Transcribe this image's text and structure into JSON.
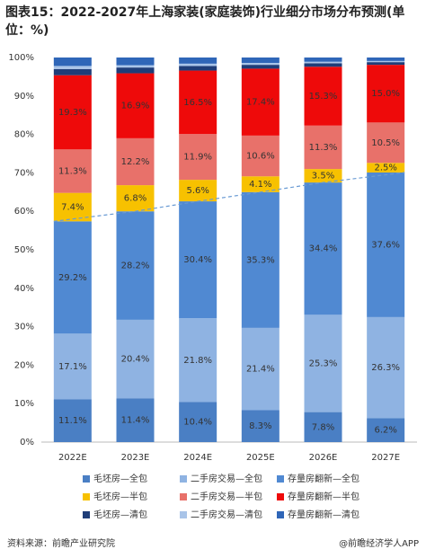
{
  "chart_data": {
    "type": "stacked_bar",
    "title": "图表15：2022-2027年上海家装(家庭装饰)行业细分市场分布预测(单位：%)",
    "categories": [
      "2022E",
      "2023E",
      "2024E",
      "2025E",
      "2026E",
      "2027E"
    ],
    "ylim": [
      0,
      100
    ],
    "yticks": [
      {
        "value": 0,
        "label": "0%"
      },
      {
        "value": 10,
        "label": "10%"
      },
      {
        "value": 20,
        "label": "20%"
      },
      {
        "value": 30,
        "label": "30%"
      },
      {
        "value": 40,
        "label": "40%"
      },
      {
        "value": 50,
        "label": "50%"
      },
      {
        "value": 60,
        "label": "60%"
      },
      {
        "value": 70,
        "label": "70%"
      },
      {
        "value": 80,
        "label": "80%"
      },
      {
        "value": 90,
        "label": "90%"
      },
      {
        "value": 100,
        "label": "100%"
      }
    ],
    "series": [
      {
        "name": "毛坯房—全包",
        "color": "#4a7fc4",
        "values": [
          11.1,
          11.4,
          10.4,
          8.3,
          7.8,
          6.2
        ],
        "value_labels": [
          "11.1%",
          "11.4%",
          "10.4%",
          "8.3%",
          "7.8%",
          "6.2%"
        ]
      },
      {
        "name": "二手房交易—全包",
        "color": "#8fb3e2",
        "values": [
          17.1,
          20.4,
          21.8,
          21.4,
          25.3,
          26.3
        ],
        "value_labels": [
          "17.1%",
          "20.4%",
          "21.8%",
          "21.4%",
          "25.3%",
          "26.3%"
        ]
      },
      {
        "name": "存量房翻新—全包",
        "color": "#5089d2",
        "values": [
          29.2,
          28.2,
          30.4,
          35.3,
          34.4,
          37.6
        ],
        "value_labels": [
          "29.2%",
          "28.2%",
          "30.4%",
          "35.3%",
          "34.4%",
          "37.6%"
        ]
      },
      {
        "name": "毛坯房—半包",
        "color": "#f7c100",
        "values": [
          7.4,
          6.8,
          5.6,
          4.1,
          3.5,
          2.5
        ],
        "value_labels": [
          "7.4%",
          "6.8%",
          "5.6%",
          "4.1%",
          "3.5%",
          "2.5%"
        ]
      },
      {
        "name": "二手房交易—半包",
        "color": "#e8716a",
        "values": [
          11.3,
          12.2,
          11.9,
          10.6,
          11.3,
          10.5
        ],
        "value_labels": [
          "11.3%",
          "12.2%",
          "11.9%",
          "10.6%",
          "11.3%",
          "10.5%"
        ]
      },
      {
        "name": "存量房翻新—半包",
        "color": "#ee0a0a",
        "values": [
          19.3,
          16.9,
          16.5,
          17.4,
          15.3,
          15.0
        ],
        "value_labels": [
          "19.3%",
          "16.9%",
          "16.5%",
          "17.4%",
          "15.3%",
          "15.0%"
        ]
      },
      {
        "name": "毛坯房—清包",
        "color": "#1f3d78",
        "values": [
          1.6,
          1.5,
          1.2,
          1.0,
          0.9,
          0.7
        ]
      },
      {
        "name": "二手房交易—清包",
        "color": "#a9c4e8",
        "values": [
          0.8,
          0.6,
          0.6,
          0.5,
          0.4,
          0.3
        ]
      },
      {
        "name": "存量房翻新—清包",
        "color": "#2f66b8",
        "values": [
          2.2,
          2.0,
          1.6,
          1.4,
          1.1,
          0.9
        ]
      }
    ],
    "source": "资料来源：前瞻产业研究院",
    "credit": "@前瞻经济学人APP"
  }
}
